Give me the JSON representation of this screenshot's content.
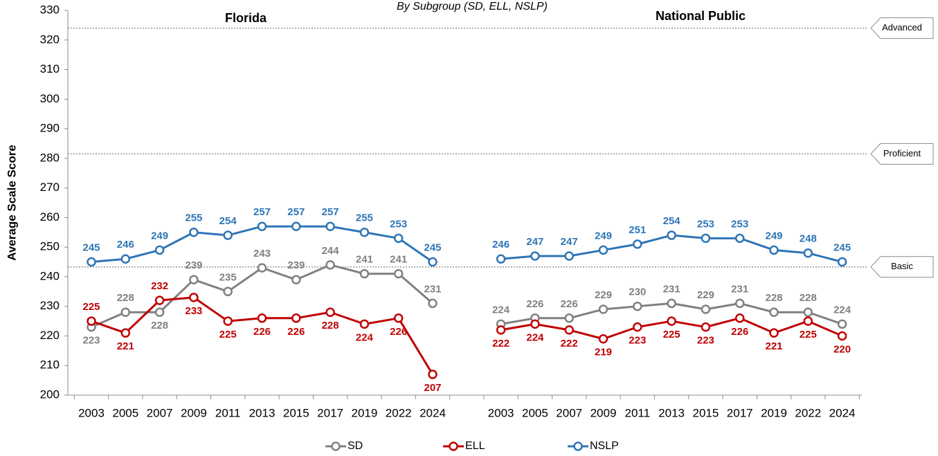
{
  "chart_data": {
    "type": "line",
    "subtitle": "By Subgroup (SD, ELL, NSLP)",
    "y_label": "Average Scale Score",
    "panels": [
      "Florida",
      "National Public"
    ],
    "categories": [
      "2003",
      "2005",
      "2007",
      "2009",
      "2011",
      "2013",
      "2015",
      "2017",
      "2019",
      "2022",
      "2024",
      null,
      "2003",
      "2005",
      "2007",
      "2009",
      "2011",
      "2013",
      "2015",
      "2017",
      "2019",
      "2022",
      "2024"
    ],
    "series": [
      {
        "name": "SD",
        "color": "#808080",
        "values": [
          223,
          228,
          228,
          239,
          235,
          243,
          239,
          244,
          241,
          241,
          231,
          null,
          224,
          226,
          226,
          229,
          230,
          231,
          229,
          231,
          228,
          228,
          224
        ]
      },
      {
        "name": "ELL",
        "color": "#c00000",
        "values": [
          225,
          221,
          232,
          233,
          225,
          226,
          226,
          228,
          224,
          226,
          207,
          null,
          222,
          224,
          222,
          219,
          223,
          225,
          223,
          226,
          221,
          225,
          220
        ]
      },
      {
        "name": "NSLP",
        "color": "#2e75b6",
        "values": [
          245,
          246,
          249,
          255,
          254,
          257,
          257,
          257,
          255,
          253,
          245,
          null,
          246,
          247,
          247,
          249,
          251,
          254,
          253,
          253,
          249,
          248,
          245
        ]
      }
    ],
    "reference_lines": [
      {
        "label": "Advanced",
        "value": 324
      },
      {
        "label": "Proficient",
        "value": 281.5
      },
      {
        "label": "Basic",
        "value": 243.3
      }
    ],
    "ylim": [
      200,
      330
    ],
    "yticks": [
      200,
      210,
      220,
      230,
      240,
      250,
      260,
      270,
      280,
      290,
      300,
      310,
      320,
      330
    ],
    "legend": "bottom"
  }
}
